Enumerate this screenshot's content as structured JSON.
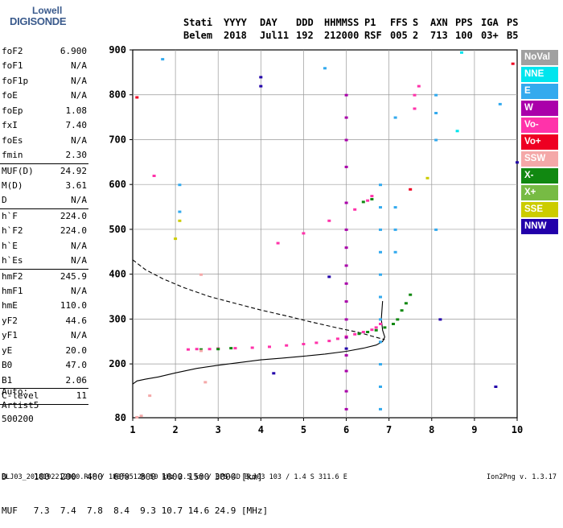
{
  "logo": {
    "line1": "Lowell",
    "line2": "DIGISONDE"
  },
  "header": {
    "labels": [
      "Stati",
      "YYYY",
      "DAY",
      "DDD",
      "HHMMSS",
      "P1",
      "FFS",
      "S",
      "AXN",
      "PPS",
      "IGA",
      "PS"
    ],
    "values": [
      "Belem",
      "2018",
      "Jul11",
      "192",
      "212000",
      "RSF",
      "005",
      "2",
      "713",
      "100",
      "03+",
      "B5"
    ]
  },
  "params": [
    {
      "name": "foF2",
      "value": "6.900"
    },
    {
      "name": "foF1",
      "value": "N/A"
    },
    {
      "name": "foF1p",
      "value": "N/A"
    },
    {
      "name": "foE",
      "value": "N/A"
    },
    {
      "name": "foEp",
      "value": "1.08"
    },
    {
      "name": "fxI",
      "value": "7.40"
    },
    {
      "name": "foEs",
      "value": "N/A"
    },
    {
      "name": "fmin",
      "value": "2.30"
    },
    {
      "name": "MUF(D)",
      "value": "24.92",
      "sep": true
    },
    {
      "name": "M(D)",
      "value": "3.61"
    },
    {
      "name": "D",
      "value": "N/A"
    },
    {
      "name": "h`F",
      "value": "224.0",
      "sep": true
    },
    {
      "name": "h`F2",
      "value": "224.0"
    },
    {
      "name": "h`E",
      "value": "N/A"
    },
    {
      "name": "h`Es",
      "value": "N/A"
    },
    {
      "name": "hmF2",
      "value": "245.9",
      "sep": true
    },
    {
      "name": "hmF1",
      "value": "N/A"
    },
    {
      "name": "hmE",
      "value": "110.0"
    },
    {
      "name": "yF2",
      "value": "44.6"
    },
    {
      "name": "yF1",
      "value": "N/A"
    },
    {
      "name": "yE",
      "value": "20.0"
    },
    {
      "name": "B0",
      "value": "47.0"
    },
    {
      "name": "B1",
      "value": "2.06"
    },
    {
      "name": "C-level",
      "value": "11",
      "sep": true
    }
  ],
  "auto": {
    "line1": "Auto:",
    "line2": "Artist5",
    "line3": "500200"
  },
  "legend": [
    {
      "label": "NoVal",
      "color": "#a0a0a0"
    },
    {
      "label": "NNE",
      "color": "#00e5ee"
    },
    {
      "label": "E",
      "color": "#33aaee"
    },
    {
      "label": "W",
      "color": "#aa00aa"
    },
    {
      "label": "Vo-",
      "color": "#ff33aa"
    },
    {
      "label": "Vo+",
      "color": "#ee0022"
    },
    {
      "label": "SSW",
      "color": "#f4a8a8"
    },
    {
      "label": "X-",
      "color": "#118811"
    },
    {
      "label": "X+",
      "color": "#77bb44"
    },
    {
      "label": "SSE",
      "color": "#cccc00"
    },
    {
      "label": "NNW",
      "color": "#2200aa"
    }
  ],
  "footer": {
    "line1": "D     100  200  400  600  800 1000 1500 3000 [km]",
    "line2": "MUF   7.3  7.4  7.8  8.4  9.3 10.7 14.6 24.9 [MHz]",
    "line3": "BLJ03_2018192212000.RSF / 180fx512h 50 kHz 2.5 km / DPS-4D BLJ03 103 / 1.4 S 311.6 E",
    "version": "Ion2Png v. 1.3.17"
  },
  "chart_data": {
    "type": "scatter",
    "xlabel": "",
    "ylabel": "",
    "xlim": [
      1,
      10
    ],
    "ylim": [
      80,
      900
    ],
    "x_ticks": [
      1,
      2,
      3,
      4,
      5,
      6,
      7,
      8,
      9,
      10
    ],
    "y_ticks": [
      200,
      300,
      400,
      500,
      600,
      700,
      800,
      900
    ],
    "y_tick_bottom": "80",
    "grid": true,
    "series": [
      {
        "name": "Vo-",
        "color": "#ff33aa",
        "points": [
          [
            2.3,
            233
          ],
          [
            2.5,
            234
          ],
          [
            2.8,
            234
          ],
          [
            3.0,
            235
          ],
          [
            3.4,
            236
          ],
          [
            3.8,
            237
          ],
          [
            4.2,
            239
          ],
          [
            4.6,
            242
          ],
          [
            5.0,
            245
          ],
          [
            5.3,
            248
          ],
          [
            5.6,
            252
          ],
          [
            5.8,
            257
          ],
          [
            6.0,
            262
          ],
          [
            6.2,
            267
          ],
          [
            6.4,
            272
          ],
          [
            6.6,
            277
          ],
          [
            6.7,
            282
          ],
          [
            6.8,
            290
          ],
          [
            4.4,
            470
          ],
          [
            5.0,
            492
          ],
          [
            5.6,
            520
          ],
          [
            6.2,
            545
          ],
          [
            6.5,
            565
          ],
          [
            6.6,
            575
          ],
          [
            1.5,
            620
          ],
          [
            7.6,
            770
          ],
          [
            7.6,
            800
          ],
          [
            7.7,
            820
          ]
        ]
      },
      {
        "name": "X-",
        "color": "#118811",
        "points": [
          [
            2.6,
            233
          ],
          [
            3.0,
            234
          ],
          [
            3.3,
            236
          ],
          [
            6.3,
            268
          ],
          [
            6.5,
            272
          ],
          [
            6.7,
            276
          ],
          [
            6.9,
            282
          ],
          [
            7.1,
            290
          ],
          [
            7.2,
            300
          ],
          [
            7.3,
            320
          ],
          [
            7.4,
            336
          ],
          [
            7.5,
            355
          ],
          [
            6.4,
            562
          ],
          [
            6.6,
            568
          ]
        ]
      },
      {
        "name": "W",
        "color": "#aa00aa",
        "points": [
          [
            6.0,
            220
          ],
          [
            6.0,
            260
          ],
          [
            6.0,
            300
          ],
          [
            6.0,
            340
          ],
          [
            6.0,
            380
          ],
          [
            6.0,
            420
          ],
          [
            6.0,
            460
          ],
          [
            6.0,
            500
          ],
          [
            6.0,
            560
          ],
          [
            6.0,
            640
          ],
          [
            6.0,
            700
          ],
          [
            6.0,
            750
          ],
          [
            6.0,
            800
          ],
          [
            6.0,
            185
          ],
          [
            6.0,
            140
          ],
          [
            6.0,
            100
          ]
        ]
      },
      {
        "name": "E",
        "color": "#33aaee",
        "points": [
          [
            6.8,
            100
          ],
          [
            6.8,
            150
          ],
          [
            6.8,
            200
          ],
          [
            6.8,
            250
          ],
          [
            6.8,
            300
          ],
          [
            6.8,
            350
          ],
          [
            6.8,
            400
          ],
          [
            6.8,
            450
          ],
          [
            6.8,
            500
          ],
          [
            6.8,
            550
          ],
          [
            6.8,
            600
          ],
          [
            7.15,
            450
          ],
          [
            7.15,
            500
          ],
          [
            7.15,
            550
          ],
          [
            7.15,
            750
          ],
          [
            8.1,
            500
          ],
          [
            8.1,
            700
          ],
          [
            8.1,
            760
          ],
          [
            8.1,
            800
          ],
          [
            1.7,
            880
          ],
          [
            2.1,
            540
          ],
          [
            2.1,
            600
          ],
          [
            5.5,
            860
          ],
          [
            9.6,
            780
          ]
        ]
      },
      {
        "name": "NNW",
        "color": "#2200aa",
        "points": [
          [
            4.0,
            820
          ],
          [
            4.0,
            840
          ],
          [
            4.3,
            180
          ],
          [
            6.0,
            235
          ],
          [
            5.6,
            395
          ],
          [
            8.2,
            300
          ],
          [
            9.5,
            150
          ],
          [
            10.0,
            650
          ]
        ]
      },
      {
        "name": "SSW",
        "color": "#f4a8a8",
        "points": [
          [
            1.1,
            82
          ],
          [
            1.2,
            85
          ],
          [
            2.6,
            400
          ],
          [
            2.7,
            160
          ],
          [
            2.6,
            230
          ],
          [
            1.4,
            130
          ]
        ]
      },
      {
        "name": "SSE",
        "color": "#cccc00",
        "points": [
          [
            2.0,
            480
          ],
          [
            2.1,
            520
          ],
          [
            7.9,
            615
          ]
        ]
      },
      {
        "name": "Vo+",
        "color": "#ee0022",
        "points": [
          [
            7.5,
            590
          ],
          [
            9.9,
            870
          ],
          [
            1.1,
            795
          ]
        ]
      },
      {
        "name": "NNE",
        "color": "#00e5ee",
        "points": [
          [
            8.6,
            720
          ],
          [
            8.7,
            895
          ]
        ]
      }
    ],
    "lines": [
      {
        "name": "profile_solid",
        "style": "solid",
        "points": [
          [
            1.0,
            155
          ],
          [
            1.1,
            162
          ],
          [
            1.3,
            166
          ],
          [
            1.6,
            171
          ],
          [
            2.0,
            180
          ],
          [
            2.5,
            190
          ],
          [
            3.0,
            197
          ],
          [
            3.5,
            203
          ],
          [
            4.0,
            209
          ],
          [
            4.5,
            213
          ],
          [
            5.0,
            217
          ],
          [
            5.5,
            222
          ],
          [
            6.0,
            228
          ],
          [
            6.4,
            235
          ],
          [
            6.7,
            242
          ],
          [
            6.85,
            250
          ],
          [
            6.9,
            260
          ],
          [
            6.85,
            275
          ],
          [
            6.82,
            300
          ],
          [
            6.85,
            340
          ]
        ]
      },
      {
        "name": "profile_dashed",
        "style": "dashed",
        "points": [
          [
            1.0,
            432
          ],
          [
            1.3,
            410
          ],
          [
            1.7,
            390
          ],
          [
            2.2,
            370
          ],
          [
            2.8,
            350
          ],
          [
            3.4,
            335
          ],
          [
            4.0,
            320
          ],
          [
            4.6,
            307
          ],
          [
            5.2,
            293
          ],
          [
            5.8,
            280
          ],
          [
            6.3,
            270
          ],
          [
            6.6,
            262
          ],
          [
            6.9,
            254
          ]
        ]
      }
    ]
  }
}
